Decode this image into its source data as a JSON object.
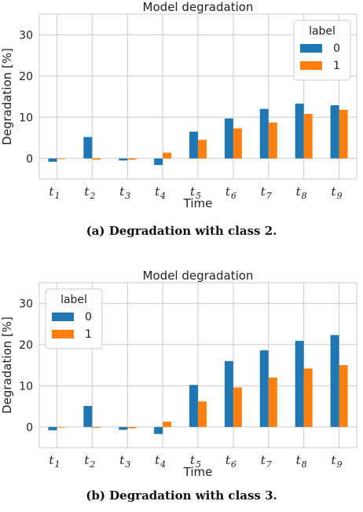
{
  "chart_data": [
    {
      "type": "bar",
      "title": "Model degradation",
      "xlabel": "Time",
      "ylabel": "Degradation [%]",
      "ylim": [
        -5,
        35
      ],
      "yticks": [
        0,
        10,
        20,
        30
      ],
      "categories": [
        "t1",
        "t2",
        "t3",
        "t4",
        "t5",
        "t6",
        "t7",
        "t8",
        "t9"
      ],
      "category_labels": [
        {
          "main": "t",
          "sub": "1"
        },
        {
          "main": "t",
          "sub": "2"
        },
        {
          "main": "t",
          "sub": "3"
        },
        {
          "main": "t",
          "sub": "4"
        },
        {
          "main": "t",
          "sub": "5"
        },
        {
          "main": "t",
          "sub": "6"
        },
        {
          "main": "t",
          "sub": "7"
        },
        {
          "main": "t",
          "sub": "8"
        },
        {
          "main": "t",
          "sub": "9"
        }
      ],
      "legend_title": "label",
      "legend_position": "top-right",
      "grid": true,
      "series": [
        {
          "name": "0",
          "color": "#1f77b4",
          "values": [
            -0.8,
            5.2,
            -0.5,
            -1.6,
            6.5,
            9.7,
            12.0,
            13.3,
            12.9
          ]
        },
        {
          "name": "1",
          "color": "#ff7f0e",
          "values": [
            0.0,
            -0.3,
            -0.3,
            1.4,
            4.5,
            7.3,
            8.7,
            10.8,
            11.8
          ]
        }
      ]
    },
    {
      "type": "bar",
      "title": "Model degradation",
      "xlabel": "Time",
      "ylabel": "Degradation [%]",
      "ylim": [
        -5,
        35
      ],
      "yticks": [
        0,
        10,
        20,
        30
      ],
      "categories": [
        "t1",
        "t2",
        "t3",
        "t4",
        "t5",
        "t6",
        "t7",
        "t8",
        "t9"
      ],
      "category_labels": [
        {
          "main": "t",
          "sub": "1"
        },
        {
          "main": "t",
          "sub": "2"
        },
        {
          "main": "t",
          "sub": "3"
        },
        {
          "main": "t",
          "sub": "4"
        },
        {
          "main": "t",
          "sub": "5"
        },
        {
          "main": "t",
          "sub": "6"
        },
        {
          "main": "t",
          "sub": "7"
        },
        {
          "main": "t",
          "sub": "8"
        },
        {
          "main": "t",
          "sub": "9"
        }
      ],
      "legend_title": "label",
      "legend_position": "top-left",
      "grid": true,
      "series": [
        {
          "name": "0",
          "color": "#1f77b4",
          "values": [
            -0.8,
            5.1,
            -0.7,
            -1.7,
            10.2,
            16.0,
            18.6,
            20.9,
            22.3
          ]
        },
        {
          "name": "1",
          "color": "#ff7f0e",
          "values": [
            0.0,
            -0.2,
            -0.3,
            1.3,
            6.2,
            9.6,
            12.0,
            14.2,
            15.0
          ]
        }
      ]
    }
  ],
  "captions": {
    "a": "(a) Degradation with class 2.",
    "b": "(b) Degradation with class 3."
  }
}
